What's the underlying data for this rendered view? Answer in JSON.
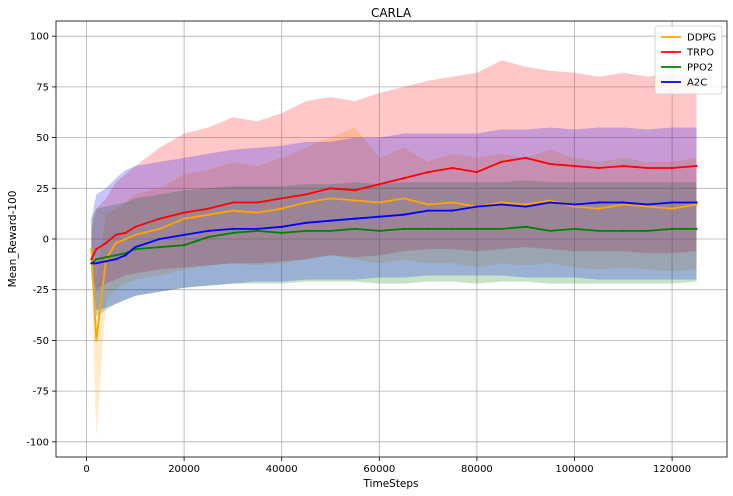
{
  "chart_data": {
    "type": "line",
    "title": "CARLA",
    "xlabel": "TimeSteps",
    "ylabel": "Mean_Reward-100",
    "xlim": [
      -6250,
      131250
    ],
    "ylim": [
      -107.5,
      107.5
    ],
    "xticks": [
      0,
      20000,
      40000,
      60000,
      80000,
      100000,
      120000
    ],
    "yticks": [
      -100,
      -75,
      -50,
      -25,
      0,
      25,
      50,
      75,
      100
    ],
    "grid": true,
    "legend_position": "top-right",
    "series": [
      {
        "name": "DDPG",
        "color": "#ffa500",
        "x": [
          1000,
          2000,
          4000,
          6000,
          8000,
          10000,
          15000,
          20000,
          25000,
          30000,
          35000,
          40000,
          45000,
          50000,
          55000,
          60000,
          65000,
          70000,
          75000,
          80000,
          85000,
          90000,
          95000,
          100000,
          105000,
          110000,
          115000,
          120000,
          125000
        ],
        "mean": [
          -5,
          -50,
          -10,
          -2,
          0,
          2,
          5,
          10,
          12,
          14,
          13,
          15,
          18,
          20,
          19,
          18,
          20,
          17,
          18,
          16,
          18,
          17,
          19,
          16,
          15,
          17,
          16,
          15,
          17
        ],
        "lower": [
          -12,
          -98,
          -30,
          -25,
          -22,
          -20,
          -18,
          -15,
          -13,
          -12,
          -13,
          -12,
          -10,
          -8,
          -10,
          -12,
          -10,
          -12,
          -12,
          -14,
          -12,
          -13,
          -12,
          -14,
          -15,
          -14,
          -15,
          -16,
          -15
        ],
        "upper": [
          5,
          -20,
          12,
          15,
          18,
          22,
          25,
          32,
          34,
          38,
          36,
          40,
          45,
          50,
          55,
          40,
          45,
          38,
          42,
          40,
          42,
          40,
          44,
          40,
          38,
          40,
          38,
          38,
          40
        ]
      },
      {
        "name": "TRPO",
        "color": "#ff0000",
        "x": [
          1000,
          2000,
          4000,
          6000,
          8000,
          10000,
          15000,
          20000,
          25000,
          30000,
          35000,
          40000,
          45000,
          50000,
          55000,
          60000,
          65000,
          70000,
          75000,
          80000,
          85000,
          90000,
          95000,
          100000,
          105000,
          110000,
          115000,
          120000,
          125000
        ],
        "mean": [
          -10,
          -5,
          -2,
          2,
          3,
          6,
          10,
          13,
          15,
          18,
          18,
          20,
          22,
          25,
          24,
          27,
          30,
          33,
          35,
          33,
          38,
          40,
          37,
          36,
          35,
          36,
          35,
          35,
          36
        ],
        "lower": [
          -15,
          -25,
          -22,
          -20,
          -18,
          -17,
          -15,
          -14,
          -13,
          -12,
          -12,
          -11,
          -10,
          -8,
          -9,
          -8,
          -6,
          -5,
          -5,
          -6,
          -5,
          -4,
          -5,
          -6,
          -6,
          -6,
          -7,
          -7,
          -6
        ],
        "upper": [
          5,
          15,
          20,
          28,
          32,
          36,
          45,
          52,
          55,
          60,
          58,
          62,
          68,
          70,
          68,
          72,
          75,
          78,
          80,
          82,
          88,
          85,
          83,
          82,
          80,
          82,
          80,
          82,
          80
        ]
      },
      {
        "name": "PPO2",
        "color": "#008000",
        "x": [
          1000,
          2000,
          4000,
          6000,
          8000,
          10000,
          15000,
          20000,
          25000,
          30000,
          35000,
          40000,
          45000,
          50000,
          55000,
          60000,
          65000,
          70000,
          75000,
          80000,
          85000,
          90000,
          95000,
          100000,
          105000,
          110000,
          115000,
          120000,
          125000
        ],
        "mean": [
          -12,
          -10,
          -9,
          -8,
          -7,
          -5,
          -4,
          -3,
          1,
          3,
          4,
          3,
          4,
          4,
          5,
          4,
          5,
          5,
          5,
          5,
          5,
          6,
          4,
          5,
          4,
          4,
          4,
          5,
          5
        ],
        "lower": [
          -18,
          -38,
          -35,
          -32,
          -30,
          -28,
          -26,
          -24,
          -23,
          -22,
          -22,
          -22,
          -21,
          -21,
          -21,
          -22,
          -22,
          -21,
          -21,
          -22,
          -21,
          -21,
          -22,
          -22,
          -22,
          -22,
          -22,
          -22,
          -21
        ],
        "upper": [
          10,
          15,
          16,
          17,
          18,
          20,
          22,
          24,
          25,
          26,
          26,
          26,
          27,
          27,
          28,
          27,
          28,
          28,
          28,
          28,
          28,
          29,
          28,
          28,
          28,
          28,
          28,
          28,
          28
        ]
      },
      {
        "name": "A2C",
        "color": "#0000ff",
        "x": [
          1000,
          2000,
          4000,
          6000,
          8000,
          10000,
          15000,
          20000,
          25000,
          30000,
          35000,
          40000,
          45000,
          50000,
          55000,
          60000,
          65000,
          70000,
          75000,
          80000,
          85000,
          90000,
          95000,
          100000,
          105000,
          110000,
          115000,
          120000,
          125000
        ],
        "mean": [
          -12,
          -12,
          -11,
          -10,
          -8,
          -4,
          0,
          2,
          4,
          5,
          5,
          6,
          8,
          9,
          10,
          11,
          12,
          14,
          14,
          16,
          17,
          16,
          18,
          17,
          18,
          18,
          17,
          18,
          18
        ],
        "lower": [
          -18,
          -35,
          -34,
          -32,
          -30,
          -28,
          -26,
          -24,
          -23,
          -22,
          -21,
          -21,
          -20,
          -20,
          -20,
          -19,
          -19,
          -18,
          -18,
          -18,
          -18,
          -19,
          -19,
          -19,
          -20,
          -20,
          -20,
          -20,
          -20
        ],
        "upper": [
          10,
          22,
          25,
          30,
          34,
          36,
          38,
          40,
          42,
          44,
          45,
          46,
          48,
          48,
          50,
          50,
          52,
          52,
          52,
          52,
          54,
          54,
          55,
          54,
          55,
          55,
          54,
          55,
          55
        ]
      }
    ]
  }
}
